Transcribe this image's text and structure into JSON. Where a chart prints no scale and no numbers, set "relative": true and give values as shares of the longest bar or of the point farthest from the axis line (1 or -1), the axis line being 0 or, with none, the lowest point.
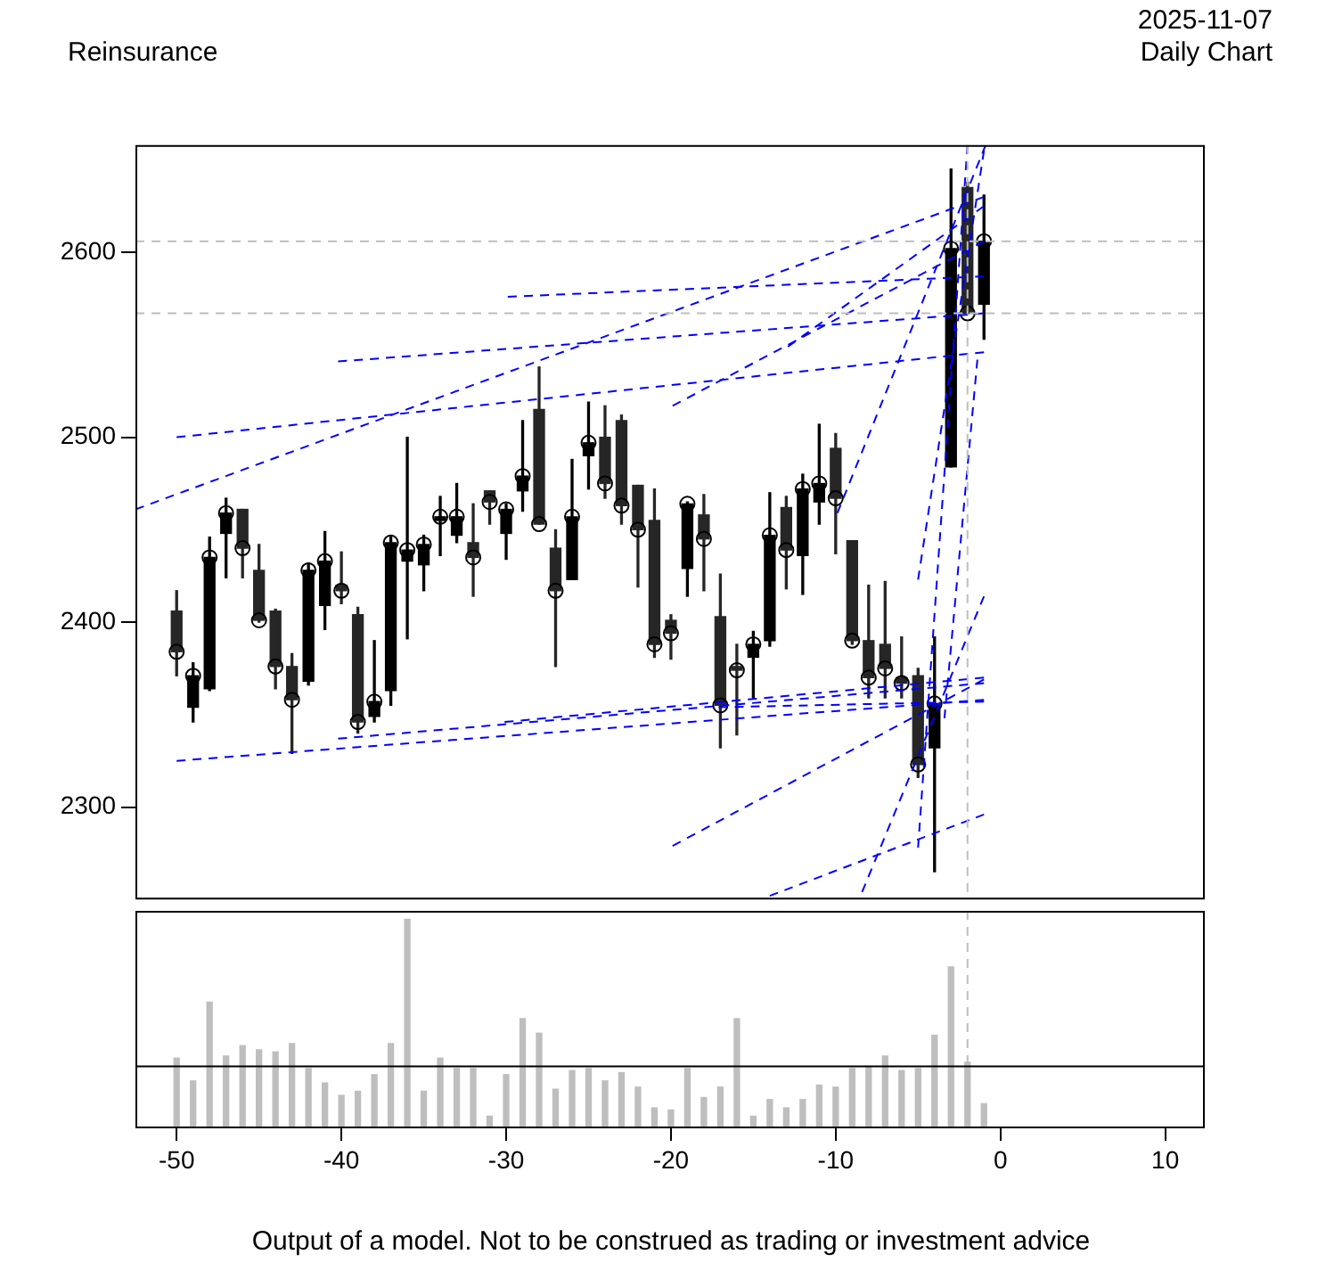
{
  "chart_data": [
    {
      "type": "candlestick",
      "subtitle": "Reinsurance",
      "annotations": [
        "2025-11-07",
        "Daily Chart",
        "Output of a model. Not to be construed as trading or investment advice"
      ],
      "x": [
        -50,
        -49,
        -48,
        -47,
        -46,
        -45,
        -44,
        -43,
        -42,
        -41,
        -40,
        -39,
        -38,
        -37,
        -36,
        -35,
        -34,
        -33,
        -32,
        -31,
        -30,
        -29,
        -28,
        -27,
        -26,
        -25,
        -24,
        -23,
        -22,
        -21,
        -20,
        -19,
        -18,
        -17,
        -16,
        -15,
        -14,
        -13,
        -12,
        -11,
        -10,
        -9,
        -8,
        -7,
        -6,
        -5,
        -4,
        -3,
        -2,
        -1
      ],
      "ohlc": [
        [
          2406,
          2417,
          2371,
          2384
        ],
        [
          2354,
          2378,
          2346,
          2371
        ],
        [
          2364,
          2446,
          2363,
          2435
        ],
        [
          2448,
          2467,
          2424,
          2459
        ],
        [
          2461,
          2461,
          2424,
          2440
        ],
        [
          2428,
          2442,
          2400,
          2401
        ],
        [
          2406,
          2407,
          2364,
          2376
        ],
        [
          2376,
          2383,
          2329,
          2358
        ],
        [
          2368,
          2432,
          2366,
          2428
        ],
        [
          2409,
          2449,
          2396,
          2433
        ],
        [
          2420,
          2438,
          2410,
          2417
        ],
        [
          2404,
          2408,
          2340,
          2346
        ],
        [
          2349,
          2390,
          2346,
          2357
        ],
        [
          2363,
          2446,
          2355,
          2443
        ],
        [
          2433,
          2500,
          2391,
          2439
        ],
        [
          2431,
          2447,
          2417,
          2442
        ],
        [
          2455,
          2468,
          2436,
          2457
        ],
        [
          2447,
          2475,
          2443,
          2457
        ],
        [
          2443,
          2464,
          2414,
          2435
        ],
        [
          2471,
          2471,
          2453,
          2465
        ],
        [
          2448,
          2464,
          2434,
          2461
        ],
        [
          2471,
          2509,
          2460,
          2479
        ],
        [
          2515,
          2538,
          2453,
          2453
        ],
        [
          2440,
          2450,
          2376,
          2417
        ],
        [
          2423,
          2488,
          2423,
          2457
        ],
        [
          2490,
          2519,
          2472,
          2497
        ],
        [
          2500,
          2517,
          2467,
          2475
        ],
        [
          2509,
          2512,
          2453,
          2463
        ],
        [
          2474,
          2474,
          2419,
          2450
        ],
        [
          2455,
          2472,
          2381,
          2388
        ],
        [
          2401,
          2404,
          2380,
          2394
        ],
        [
          2429,
          2465,
          2414,
          2464
        ],
        [
          2458,
          2469,
          2417,
          2445
        ],
        [
          2403,
          2426,
          2332,
          2355
        ],
        [
          2376,
          2388,
          2339,
          2374
        ],
        [
          2381,
          2395,
          2359,
          2388
        ],
        [
          2390,
          2470,
          2387,
          2447
        ],
        [
          2462,
          2468,
          2418,
          2439
        ],
        [
          2436,
          2480,
          2415,
          2472
        ],
        [
          2465,
          2507,
          2453,
          2475
        ],
        [
          2494,
          2502,
          2437,
          2467
        ],
        [
          2444,
          2444,
          2388,
          2390
        ],
        [
          2390,
          2420,
          2359,
          2370
        ],
        [
          2388,
          2422,
          2359,
          2375
        ],
        [
          2370,
          2392,
          2359,
          2367
        ],
        [
          2371,
          2375,
          2316,
          2323
        ],
        [
          2332,
          2392,
          2265,
          2356
        ],
        [
          2484,
          2645,
          2484,
          2602
        ],
        [
          2635,
          2638,
          2567,
          2567
        ],
        [
          2572,
          2631,
          2553,
          2606
        ]
      ],
      "colors": [
        "#262626",
        "#000000",
        "#000000",
        "#000000",
        "#262626",
        "#262626",
        "#262626",
        "#262626",
        "#000000",
        "#000000",
        "#262626",
        "#262626",
        "#000000",
        "#000000",
        "#000000",
        "#000000",
        "#000000",
        "#000000",
        "#262626",
        "#262626",
        "#000000",
        "#000000",
        "#262626",
        "#262626",
        "#000000",
        "#000000",
        "#262626",
        "#262626",
        "#262626",
        "#262626",
        "#262626",
        "#000000",
        "#262626",
        "#262626",
        "#262626",
        "#000000",
        "#000000",
        "#262626",
        "#000000",
        "#000000",
        "#262626",
        "#262626",
        "#262626",
        "#262626",
        "#262626",
        "#262626",
        "#000000",
        "#000000",
        "#262626",
        "#000000"
      ],
      "series": [
        {
          "type": "scatter",
          "marker": "circle",
          "color": "#000000",
          "x": [
            -50,
            -49,
            -48,
            -47,
            -46,
            -45,
            -44,
            -43,
            -42,
            -41,
            -40,
            -39,
            -38,
            -37,
            -36,
            -35,
            -34,
            -33,
            -32,
            -31,
            -30,
            -29,
            -28,
            -27,
            -26,
            -25,
            -24,
            -23,
            -22,
            -21,
            -20,
            -19,
            -18,
            -17,
            -16,
            -15,
            -14,
            -13,
            -12,
            -11,
            -10,
            -9,
            -8,
            -7,
            -6,
            -5,
            -4,
            -3,
            -2,
            -1
          ],
          "values": [
            2384,
            2371,
            2435,
            2459,
            2440,
            2401,
            2376,
            2358,
            2428,
            2433,
            2417,
            2346,
            2357,
            2443,
            2439,
            2442,
            2457,
            2457,
            2435,
            2465,
            2461,
            2479,
            2453,
            2417,
            2457,
            2497,
            2475,
            2463,
            2450,
            2388,
            2394,
            2464,
            2445,
            2355,
            2374,
            2388,
            2447,
            2439,
            2472,
            2475,
            2467,
            2390,
            2370,
            2375,
            2367,
            2323,
            2356,
            2602,
            2567,
            2606
          ]
        },
        {
          "type": "line",
          "color": "#0000ff",
          "line_style": "dashed",
          "x": [
            -52.5,
            -1
          ],
          "values": [
            2461,
            2630
          ]
        },
        {
          "type": "line",
          "color": "#0000ff",
          "line_style": "dashed",
          "x": [
            -50,
            -1
          ],
          "values": [
            2500,
            2546
          ]
        },
        {
          "type": "line",
          "color": "#0000ff",
          "line_style": "dashed",
          "x": [
            -40.2,
            -1
          ],
          "values": [
            2541,
            2567
          ]
        },
        {
          "type": "line",
          "color": "#0000ff",
          "line_style": "dashed",
          "x": [
            -29.9,
            -1
          ],
          "values": [
            2576,
            2587
          ]
        },
        {
          "type": "line",
          "color": "#0000ff",
          "line_style": "dashed",
          "x": [
            -19.9,
            -1
          ],
          "values": [
            2517,
            2606
          ]
        },
        {
          "type": "line",
          "color": "#0000ff",
          "line_style": "dashed",
          "x": [
            -12.9,
            -1
          ],
          "values": [
            2549,
            2625
          ]
        },
        {
          "type": "line",
          "color": "#0000ff",
          "line_style": "dashed",
          "x": [
            -9.9,
            -0.9
          ],
          "values": [
            2459,
            2658
          ]
        },
        {
          "type": "line",
          "color": "#0000ff",
          "line_style": "dashed",
          "x": [
            -5,
            -1
          ],
          "values": [
            2423,
            2655
          ]
        },
        {
          "type": "line",
          "color": "#0000ff",
          "line_style": "dashed",
          "x": [
            -8.4,
            -1
          ],
          "values": [
            2254,
            2414
          ]
        },
        {
          "type": "line",
          "color": "#0000ff",
          "line_style": "dashed",
          "x": [
            -14,
            -1
          ],
          "values": [
            2252,
            2296
          ]
        },
        {
          "type": "line",
          "color": "#0000ff",
          "line_style": "dashed",
          "x": [
            -19.9,
            -1
          ],
          "values": [
            2279,
            2369
          ]
        },
        {
          "type": "line",
          "color": "#0000ff",
          "line_style": "dashed",
          "x": [
            -50,
            -1
          ],
          "values": [
            2325,
            2358
          ]
        },
        {
          "type": "line",
          "color": "#0000ff",
          "line_style": "dashed",
          "x": [
            -40.2,
            -1
          ],
          "values": [
            2337,
            2367
          ]
        },
        {
          "type": "line",
          "color": "#0000ff",
          "line_style": "dashed",
          "x": [
            -30.1,
            -1
          ],
          "values": [
            2346,
            2370
          ]
        },
        {
          "type": "line",
          "color": "#0000ff",
          "line_style": "dashed",
          "x": [
            -17.1,
            -1
          ],
          "values": [
            2354,
            2357
          ]
        },
        {
          "type": "line",
          "color": "#0000ff",
          "line_style": "dashed",
          "x": [
            -5,
            -2
          ],
          "values": [
            2278,
            2658
          ]
        },
        {
          "type": "line",
          "color": "#0000ff",
          "line_style": "dashed",
          "x": [
            -3.4,
            -1.4
          ],
          "values": [
            2348,
            2542
          ]
        }
      ],
      "ref_lines": [
        {
          "axis": "y",
          "value": 2606,
          "color": "#bebebe",
          "line_style": "dashed"
        },
        {
          "axis": "y",
          "value": 2567,
          "color": "#bebebe",
          "line_style": "dashed"
        },
        {
          "axis": "x",
          "value": -2,
          "color": "#bebebe",
          "line_style": "dashed"
        }
      ],
      "xlim": [
        -52.5,
        12.4
      ],
      "xticks": [
        -50,
        -40,
        -30,
        -20,
        -10,
        0,
        10
      ],
      "ylim": [
        2251,
        2658
      ],
      "yticks": [
        2300,
        2400,
        2500,
        2600
      ],
      "tick_labels": "y"
    },
    {
      "type": "bar",
      "relative": true,
      "color": "#bebebe",
      "x": [
        -50,
        -49,
        -48,
        -47,
        -46,
        -45,
        -44,
        -43,
        -42,
        -41,
        -40,
        -39,
        -38,
        -37,
        -36,
        -35,
        -34,
        -33,
        -32,
        -31,
        -30,
        -29,
        -28,
        -27,
        -26,
        -25,
        -24,
        -23,
        -22,
        -21,
        -20,
        -19,
        -18,
        -17,
        -16,
        -15,
        -14,
        -13,
        -12,
        -11,
        -10,
        -9,
        -8,
        -7,
        -6,
        -5,
        -4,
        -3,
        -2,
        -1
      ],
      "values": [
        0.33,
        0.22,
        0.6,
        0.34,
        0.39,
        0.37,
        0.36,
        0.4,
        0.28,
        0.21,
        0.15,
        0.17,
        0.25,
        0.4,
        1,
        0.17,
        0.33,
        0.28,
        0.28,
        0.05,
        0.25,
        0.52,
        0.45,
        0.18,
        0.27,
        0.28,
        0.22,
        0.26,
        0.19,
        0.09,
        0.08,
        0.28,
        0.14,
        0.19,
        0.52,
        0.05,
        0.13,
        0.09,
        0.13,
        0.2,
        0.19,
        0.28,
        0.29,
        0.34,
        0.27,
        0.28,
        0.44,
        0.77,
        0.31,
        0.11
      ],
      "ref_lines": [
        {
          "axis": "y",
          "value": 0.29,
          "color": "#000000",
          "line_style": "solid"
        },
        {
          "axis": "x",
          "value": -2,
          "color": "#bebebe",
          "line_style": "dashed"
        }
      ],
      "xlim": [
        -52.5,
        12.4
      ],
      "xticks": [
        -50,
        -40,
        -30,
        -20,
        -10,
        0,
        10
      ],
      "tick_labels": "x"
    }
  ]
}
